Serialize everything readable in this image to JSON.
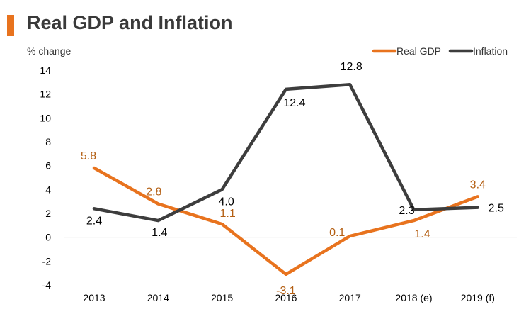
{
  "header": {
    "title": "Real GDP and Inflation",
    "accent_color": "#e8731e"
  },
  "chart_data": {
    "type": "line",
    "title": "Real GDP and Inflation",
    "ylabel": "% change",
    "categories": [
      "2013",
      "2014",
      "2015",
      "2016",
      "2017",
      "2018 (e)",
      "2019 (f)"
    ],
    "ylim": [
      -4,
      14
    ],
    "yticks": [
      -4,
      -2,
      0,
      2,
      4,
      6,
      8,
      10,
      12,
      14
    ],
    "legend_position": "top-right",
    "grid": false,
    "series": [
      {
        "name": "Real GDP",
        "color": "#e8731e",
        "label_color": "#b45f13",
        "values": [
          5.8,
          2.8,
          1.1,
          -3.1,
          0.1,
          1.4,
          3.4
        ],
        "labels": [
          "5.8",
          "2.8",
          "1.1",
          "-3.1",
          "0.1",
          "1.4",
          "3.4"
        ]
      },
      {
        "name": "Inflation",
        "color": "#3d3d3d",
        "label_color": "#000000",
        "values": [
          2.4,
          1.4,
          4.0,
          12.4,
          12.8,
          2.3,
          2.5
        ],
        "labels": [
          "2.4",
          "1.4",
          "4.0",
          "12.4",
          "12.8",
          "2.3",
          "2.5"
        ]
      }
    ]
  }
}
